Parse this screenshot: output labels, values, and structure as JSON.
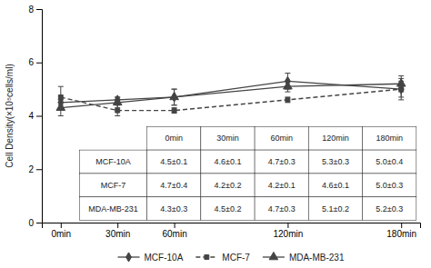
{
  "chart_data": {
    "type": "line",
    "x": [
      0,
      30,
      60,
      120,
      180
    ],
    "xlim": [
      -10,
      190
    ],
    "xticks": [
      {
        "value": 0,
        "label": "0min"
      },
      {
        "value": 30,
        "label": "30min"
      },
      {
        "value": 60,
        "label": "60min"
      },
      {
        "value": 120,
        "label": "120min"
      },
      {
        "value": 180,
        "label": "180min"
      }
    ],
    "ylim": [
      0.0,
      8.0
    ],
    "yticks": [
      0,
      2,
      4,
      6,
      8
    ],
    "y_label": "Cell Density(×10⁵cells/ml)",
    "grid": false,
    "legend": "bottom",
    "series": [
      {
        "name": "MCF-10A",
        "color": "#444444",
        "marker": "diamond",
        "line_style": "solid",
        "values": [
          4.5,
          4.6,
          4.7,
          5.3,
          5.0
        ],
        "errors": [
          0.1,
          0.1,
          0.3,
          0.3,
          0.4
        ]
      },
      {
        "name": "MCF-7",
        "color": "#444444",
        "marker": "square",
        "line_style": "dashed",
        "values": [
          4.7,
          4.2,
          4.2,
          4.6,
          5.0
        ],
        "errors": [
          0.4,
          0.2,
          0.1,
          0.1,
          0.3
        ]
      },
      {
        "name": "MDA-MB-231",
        "color": "#444444",
        "marker": "triangle",
        "line_style": "solid",
        "values": [
          4.3,
          4.5,
          4.7,
          5.1,
          5.2
        ],
        "errors": [
          0.3,
          0.2,
          0.3,
          0.2,
          0.3
        ]
      }
    ],
    "table": {
      "columns": [
        "0min",
        "30min",
        "60min",
        "120min",
        "180min"
      ],
      "rows": [
        [
          "MCF-10A",
          "4.5±0.1",
          "4.6±0.1",
          "4.7±0.3",
          "5.3±0.3",
          "5.0±0.4"
        ],
        [
          "MCF-7",
          "4.7±0.4",
          "4.2±0.2",
          "4.2±0.1",
          "4.6±0.1",
          "5.0±0.3"
        ],
        [
          "MDA-MB-231",
          "4.3±0.3",
          "4.5±0.2",
          "4.7±0.3",
          "5.1±0.2",
          "5.2±0.3"
        ]
      ]
    }
  }
}
